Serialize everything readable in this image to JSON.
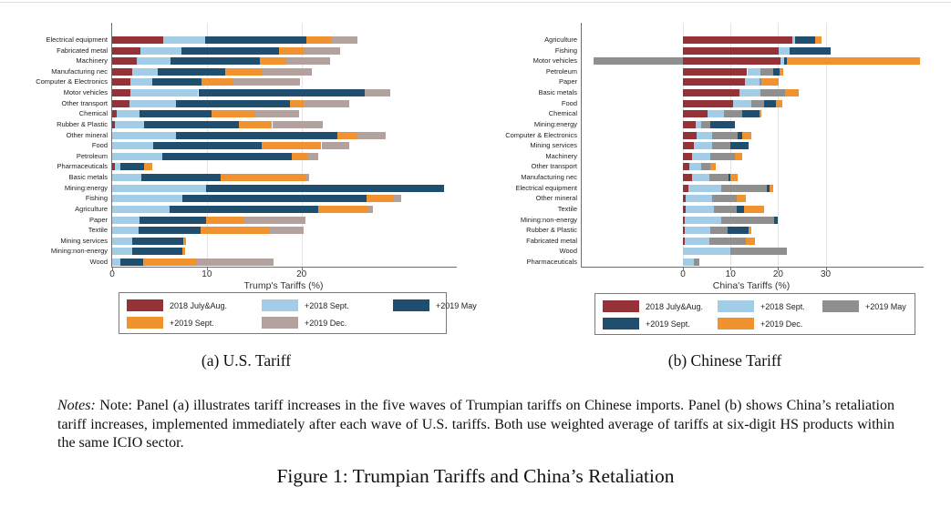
{
  "figure": {
    "panel_a_caption": "(a) U.S. Tariff",
    "panel_b_caption": "(b) Chinese Tariff",
    "notes_label": "Notes:",
    "notes_body": "Note: Panel (a) illustrates tariff increases in the five waves of Trumpian tariffs on Chinese imports. Panel (b) shows China’s retaliation tariff increases, implemented immediately after each wave of U.S. tariffs. Both use weighted average of tariffs at six-digit HS products within the same ICIO sector.",
    "caption": "Figure 1: Trumpian Tariffs and China’s Retaliation"
  },
  "colors": {
    "dark_red": "#943238",
    "light_blue": "#a3cce6",
    "navy": "#1f4e6e",
    "orange": "#f0922f",
    "tan_gray": "#b2a19c",
    "gray": "#8f8f8f",
    "axis": "#6f6f6f",
    "grid": "#e4e4e4"
  },
  "chart_data": [
    {
      "type": "bar",
      "orientation": "horizontal",
      "stacked": true,
      "title": "",
      "xlabel": "Trump's Tariffs (%)",
      "ylabel": "",
      "xlim": [
        0,
        36.4
      ],
      "xticks": [
        0,
        10,
        20
      ],
      "grid": true,
      "legend_position": "bottom",
      "categories": [
        "Electrical equipment",
        "Fabricated metal",
        "Machinery",
        "Manufacturing nec",
        "Computer & Electronics",
        "Motor vehicles",
        "Other transport",
        "Chemical",
        "Rubber & Plastic",
        "Other mineral",
        "Food",
        "Petroleum",
        "Pharmaceuticals",
        "Basic metals",
        "Mining:energy",
        "Fishing",
        "Agriculture",
        "Paper",
        "Textile",
        "Mining services",
        "Mining:non-energy",
        "Wood"
      ],
      "series": [
        {
          "name": "2018 July&Aug.",
          "color": "#943238",
          "values": [
            5.4,
            3.0,
            2.6,
            2.1,
            1.9,
            1.9,
            1.8,
            0.5,
            0.3,
            0,
            0,
            0,
            0.3,
            0,
            0,
            0,
            0,
            0,
            0,
            0,
            0,
            0
          ]
        },
        {
          "name": "+2018 Sept.",
          "color": "#a3cce6",
          "values": [
            4.4,
            4.3,
            3.6,
            2.7,
            2.3,
            7.2,
            4.9,
            2.4,
            3.1,
            6.7,
            4.3,
            5.3,
            0.6,
            3.1,
            9.9,
            7.4,
            6.1,
            2.9,
            2.8,
            2.1,
            2.1,
            0.9
          ]
        },
        {
          "name": "+2019 May",
          "color": "#1f4e6e",
          "values": [
            10.7,
            10.3,
            9.4,
            7.1,
            5.2,
            17.6,
            12.1,
            7.6,
            10.0,
            17.1,
            11.5,
            13.7,
            2.5,
            8.4,
            25.2,
            19.5,
            15.7,
            7.0,
            6.5,
            5.4,
            5.3,
            2.4
          ]
        },
        {
          "name": "+2019 Sept.",
          "color": "#f0922f",
          "values": [
            2.7,
            2.7,
            2.7,
            4.0,
            3.3,
            0,
            1.4,
            4.6,
            3.5,
            2.1,
            6.3,
            1.7,
            0.8,
            9.0,
            0,
            2.9,
            5.2,
            4.0,
            7.4,
            0.3,
            0.3,
            5.6
          ]
        },
        {
          "name": "+2019 Dec.",
          "color": "#b2a19c",
          "values": [
            2.7,
            3.8,
            4.7,
            5.2,
            7.1,
            2.7,
            4.8,
            4.6,
            5.3,
            3.0,
            2.9,
            1.1,
            0,
            0.3,
            0,
            0.7,
            0.5,
            6.5,
            3.5,
            0,
            0,
            8.1
          ]
        }
      ]
    },
    {
      "type": "bar",
      "orientation": "horizontal",
      "stacked": true,
      "title": "",
      "xlabel": "China's Tariffs (%)",
      "ylabel": "",
      "xlim": [
        -21.3,
        50.6
      ],
      "xticks": [
        0,
        10,
        20,
        30
      ],
      "grid": true,
      "legend_position": "bottom",
      "categories": [
        "Agriculture",
        "Fishing",
        "Motor vehicles",
        "Petroleum",
        "Paper",
        "Basic metals",
        "Food",
        "Chemical",
        "Mining:energy",
        "Computer & Electronics",
        "Mining services",
        "Machinery",
        "Other transport",
        "Manufacturing nec",
        "Electrical equipment",
        "Other mineral",
        "Textile",
        "Mining:non-energy",
        "Rubber & Plastic",
        "Fabricated metal",
        "Wood",
        "Pharmaceuticals"
      ],
      "series": [
        {
          "name": "2018 July&Aug.",
          "color": "#943238",
          "values": [
            23.0,
            20.1,
            20.5,
            13.5,
            13.0,
            11.9,
            10.5,
            5.2,
            2.7,
            2.9,
            2.3,
            1.9,
            1.3,
            1.9,
            1.1,
            0.6,
            0.6,
            0.3,
            0.3,
            0.3,
            0,
            0
          ]
        },
        {
          "name": "+2018 Sept.",
          "color": "#a3cce6",
          "values": [
            0.5,
            2.3,
            0.7,
            2.8,
            3.0,
            4.4,
            3.9,
            3.4,
            1.1,
            3.2,
            3.8,
            3.8,
            2.5,
            3.6,
            6.9,
            5.5,
            5.9,
            7.7,
            5.4,
            5.2,
            10.0,
            2.3
          ]
        },
        {
          "name": "+2019 May",
          "color": "#8f8f8f",
          "values": [
            0,
            0,
            -18.8,
            2.7,
            0.4,
            5.2,
            2.6,
            3.9,
            1.9,
            5.4,
            3.9,
            5.2,
            1.9,
            4.1,
            9.6,
            5.2,
            4.8,
            11.2,
            3.6,
            7.7,
            11.8,
            1.1
          ]
        },
        {
          "name": "+2019 Sept.",
          "color": "#1f4e6e",
          "values": [
            4.3,
            8.6,
            0.6,
            1.3,
            0,
            0,
            2.5,
            3.6,
            5.2,
            1.0,
            3.8,
            0,
            0,
            0.4,
            0.6,
            0,
            1.5,
            0.8,
            4.5,
            0,
            0,
            0
          ]
        },
        {
          "name": "+2019 Dec.",
          "color": "#f0922f",
          "values": [
            1.3,
            0,
            28.0,
            0.8,
            3.7,
            2.8,
            1.4,
            0.3,
            0,
            1.9,
            0,
            1.6,
            1.2,
            1.5,
            0.8,
            1.9,
            4.2,
            0,
            0.6,
            1.9,
            0,
            0
          ]
        }
      ]
    }
  ]
}
